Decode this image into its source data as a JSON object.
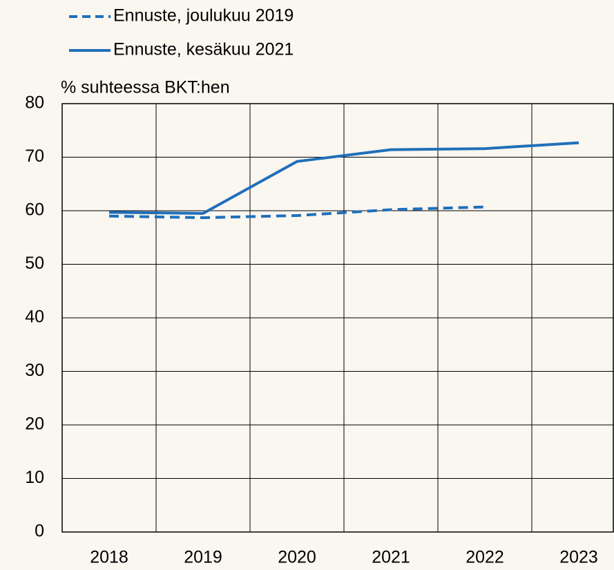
{
  "chart_data": {
    "type": "line",
    "y_label": "% suhteessa BKT:hen",
    "categories": [
      "2018",
      "2019",
      "2020",
      "2021",
      "2022",
      "2023"
    ],
    "series": [
      {
        "name": "Ennuste, joulukuu 2019",
        "color": "#1f6fba",
        "dashed": true,
        "values": [
          59.0,
          58.7,
          59.1,
          60.2,
          60.7,
          null
        ]
      },
      {
        "name": "Ennuste, kesäkuu 2021",
        "color": "#1f6fba",
        "dashed": false,
        "values": [
          59.7,
          59.5,
          69.2,
          71.4,
          71.6,
          72.7
        ]
      }
    ],
    "ylim": [
      0,
      80
    ],
    "yticks": [
      0,
      10,
      20,
      30,
      40,
      50,
      60,
      70,
      80
    ],
    "grid": true,
    "legend": "top-left"
  }
}
